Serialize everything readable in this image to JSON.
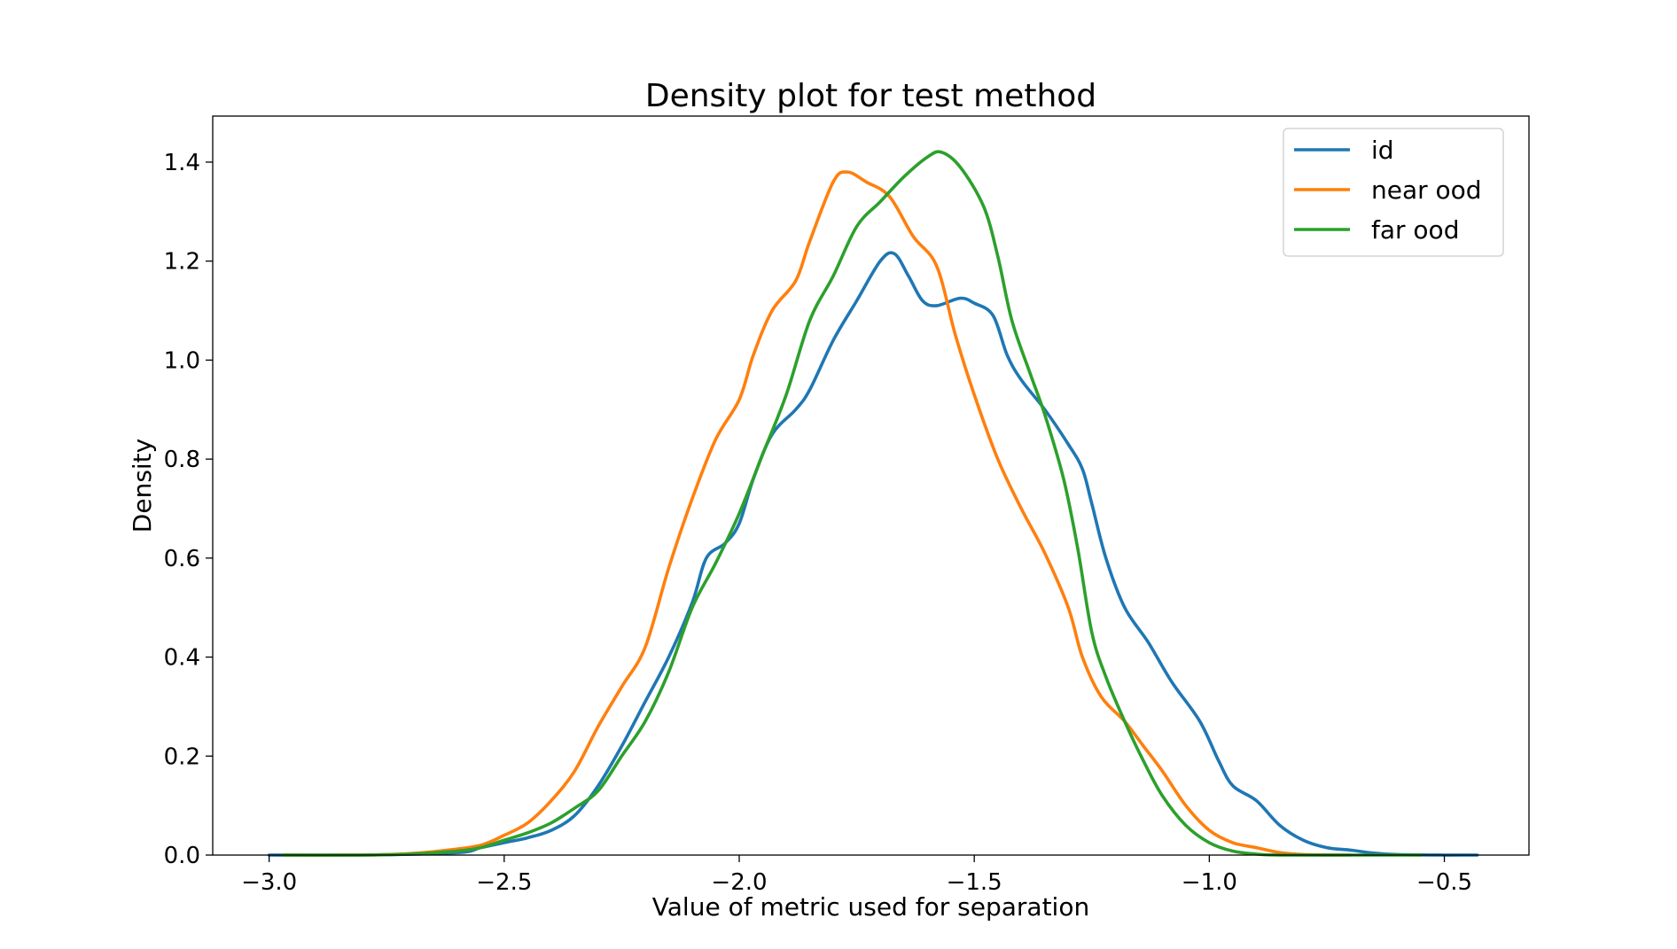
{
  "chart_data": {
    "type": "line",
    "title": "Density plot for test method",
    "xlabel": "Value of metric used for separation",
    "ylabel": "Density",
    "xlim": [
      -3.12,
      -0.32
    ],
    "ylim": [
      0.0,
      1.493
    ],
    "xticks": [
      -3.0,
      -2.5,
      -2.0,
      -1.5,
      -1.0,
      -0.5
    ],
    "xtick_labels": [
      "−3.0",
      "−2.5",
      "−2.0",
      "−1.5",
      "−1.0",
      "−0.5"
    ],
    "yticks": [
      0.0,
      0.2,
      0.4,
      0.6,
      0.8,
      1.0,
      1.2,
      1.4
    ],
    "ytick_labels": [
      "0.0",
      "0.2",
      "0.4",
      "0.6",
      "0.8",
      "1.0",
      "1.2",
      "1.4"
    ],
    "grid": false,
    "legend_position": "top-right",
    "series": [
      {
        "name": "id",
        "color": "#1f77b4",
        "points": [
          [
            -3.0,
            0.0
          ],
          [
            -2.8,
            0.0
          ],
          [
            -2.6,
            0.005
          ],
          [
            -2.55,
            0.015
          ],
          [
            -2.5,
            0.025
          ],
          [
            -2.45,
            0.035
          ],
          [
            -2.4,
            0.05
          ],
          [
            -2.35,
            0.08
          ],
          [
            -2.3,
            0.14
          ],
          [
            -2.25,
            0.22
          ],
          [
            -2.2,
            0.31
          ],
          [
            -2.15,
            0.4
          ],
          [
            -2.1,
            0.51
          ],
          [
            -2.07,
            0.6
          ],
          [
            -2.03,
            0.63
          ],
          [
            -2.0,
            0.67
          ],
          [
            -1.97,
            0.76
          ],
          [
            -1.93,
            0.85
          ],
          [
            -1.88,
            0.9
          ],
          [
            -1.85,
            0.94
          ],
          [
            -1.8,
            1.04
          ],
          [
            -1.75,
            1.12
          ],
          [
            -1.7,
            1.2
          ],
          [
            -1.67,
            1.215
          ],
          [
            -1.64,
            1.17
          ],
          [
            -1.61,
            1.12
          ],
          [
            -1.58,
            1.11
          ],
          [
            -1.53,
            1.125
          ],
          [
            -1.5,
            1.115
          ],
          [
            -1.46,
            1.09
          ],
          [
            -1.43,
            1.01
          ],
          [
            -1.4,
            0.96
          ],
          [
            -1.35,
            0.9
          ],
          [
            -1.3,
            0.83
          ],
          [
            -1.27,
            0.78
          ],
          [
            -1.25,
            0.71
          ],
          [
            -1.22,
            0.6
          ],
          [
            -1.18,
            0.5
          ],
          [
            -1.13,
            0.43
          ],
          [
            -1.08,
            0.35
          ],
          [
            -1.02,
            0.27
          ],
          [
            -0.98,
            0.19
          ],
          [
            -0.95,
            0.14
          ],
          [
            -0.9,
            0.11
          ],
          [
            -0.85,
            0.06
          ],
          [
            -0.8,
            0.03
          ],
          [
            -0.75,
            0.015
          ],
          [
            -0.7,
            0.01
          ],
          [
            -0.65,
            0.004
          ],
          [
            -0.6,
            0.001
          ],
          [
            -0.5,
            0.0
          ],
          [
            -0.43,
            0.0
          ]
        ]
      },
      {
        "name": "near ood",
        "color": "#ff7f0e",
        "points": [
          [
            -2.97,
            0.0
          ],
          [
            -2.8,
            0.0
          ],
          [
            -2.7,
            0.003
          ],
          [
            -2.62,
            0.01
          ],
          [
            -2.55,
            0.02
          ],
          [
            -2.5,
            0.04
          ],
          [
            -2.45,
            0.065
          ],
          [
            -2.4,
            0.11
          ],
          [
            -2.35,
            0.17
          ],
          [
            -2.3,
            0.26
          ],
          [
            -2.25,
            0.34
          ],
          [
            -2.2,
            0.42
          ],
          [
            -2.15,
            0.58
          ],
          [
            -2.1,
            0.72
          ],
          [
            -2.05,
            0.84
          ],
          [
            -2.0,
            0.92
          ],
          [
            -1.97,
            1.01
          ],
          [
            -1.93,
            1.1
          ],
          [
            -1.88,
            1.16
          ],
          [
            -1.85,
            1.24
          ],
          [
            -1.8,
            1.36
          ],
          [
            -1.77,
            1.38
          ],
          [
            -1.73,
            1.36
          ],
          [
            -1.68,
            1.33
          ],
          [
            -1.63,
            1.25
          ],
          [
            -1.58,
            1.19
          ],
          [
            -1.54,
            1.05
          ],
          [
            -1.5,
            0.93
          ],
          [
            -1.45,
            0.8
          ],
          [
            -1.4,
            0.7
          ],
          [
            -1.35,
            0.61
          ],
          [
            -1.3,
            0.5
          ],
          [
            -1.27,
            0.4
          ],
          [
            -1.23,
            0.32
          ],
          [
            -1.18,
            0.27
          ],
          [
            -1.14,
            0.22
          ],
          [
            -1.1,
            0.17
          ],
          [
            -1.05,
            0.1
          ],
          [
            -1.0,
            0.05
          ],
          [
            -0.95,
            0.025
          ],
          [
            -0.9,
            0.015
          ],
          [
            -0.85,
            0.005
          ],
          [
            -0.8,
            0.001
          ],
          [
            -0.7,
            0.0
          ]
        ]
      },
      {
        "name": "far ood",
        "color": "#2ca02c",
        "points": [
          [
            -2.97,
            0.0
          ],
          [
            -2.8,
            0.0
          ],
          [
            -2.7,
            0.002
          ],
          [
            -2.6,
            0.008
          ],
          [
            -2.55,
            0.015
          ],
          [
            -2.5,
            0.03
          ],
          [
            -2.45,
            0.045
          ],
          [
            -2.4,
            0.065
          ],
          [
            -2.35,
            0.095
          ],
          [
            -2.3,
            0.13
          ],
          [
            -2.25,
            0.2
          ],
          [
            -2.2,
            0.27
          ],
          [
            -2.15,
            0.37
          ],
          [
            -2.1,
            0.5
          ],
          [
            -2.05,
            0.59
          ],
          [
            -2.0,
            0.69
          ],
          [
            -1.95,
            0.81
          ],
          [
            -1.9,
            0.93
          ],
          [
            -1.85,
            1.08
          ],
          [
            -1.8,
            1.17
          ],
          [
            -1.75,
            1.27
          ],
          [
            -1.7,
            1.32
          ],
          [
            -1.65,
            1.37
          ],
          [
            -1.6,
            1.41
          ],
          [
            -1.57,
            1.42
          ],
          [
            -1.53,
            1.39
          ],
          [
            -1.48,
            1.31
          ],
          [
            -1.45,
            1.21
          ],
          [
            -1.42,
            1.08
          ],
          [
            -1.38,
            0.97
          ],
          [
            -1.35,
            0.89
          ],
          [
            -1.31,
            0.76
          ],
          [
            -1.28,
            0.62
          ],
          [
            -1.25,
            0.45
          ],
          [
            -1.22,
            0.36
          ],
          [
            -1.18,
            0.27
          ],
          [
            -1.14,
            0.19
          ],
          [
            -1.1,
            0.12
          ],
          [
            -1.05,
            0.06
          ],
          [
            -1.0,
            0.025
          ],
          [
            -0.95,
            0.008
          ],
          [
            -0.9,
            0.002
          ],
          [
            -0.85,
            0.0
          ],
          [
            -0.7,
            0.0
          ],
          [
            -0.55,
            0.0
          ]
        ]
      }
    ]
  }
}
